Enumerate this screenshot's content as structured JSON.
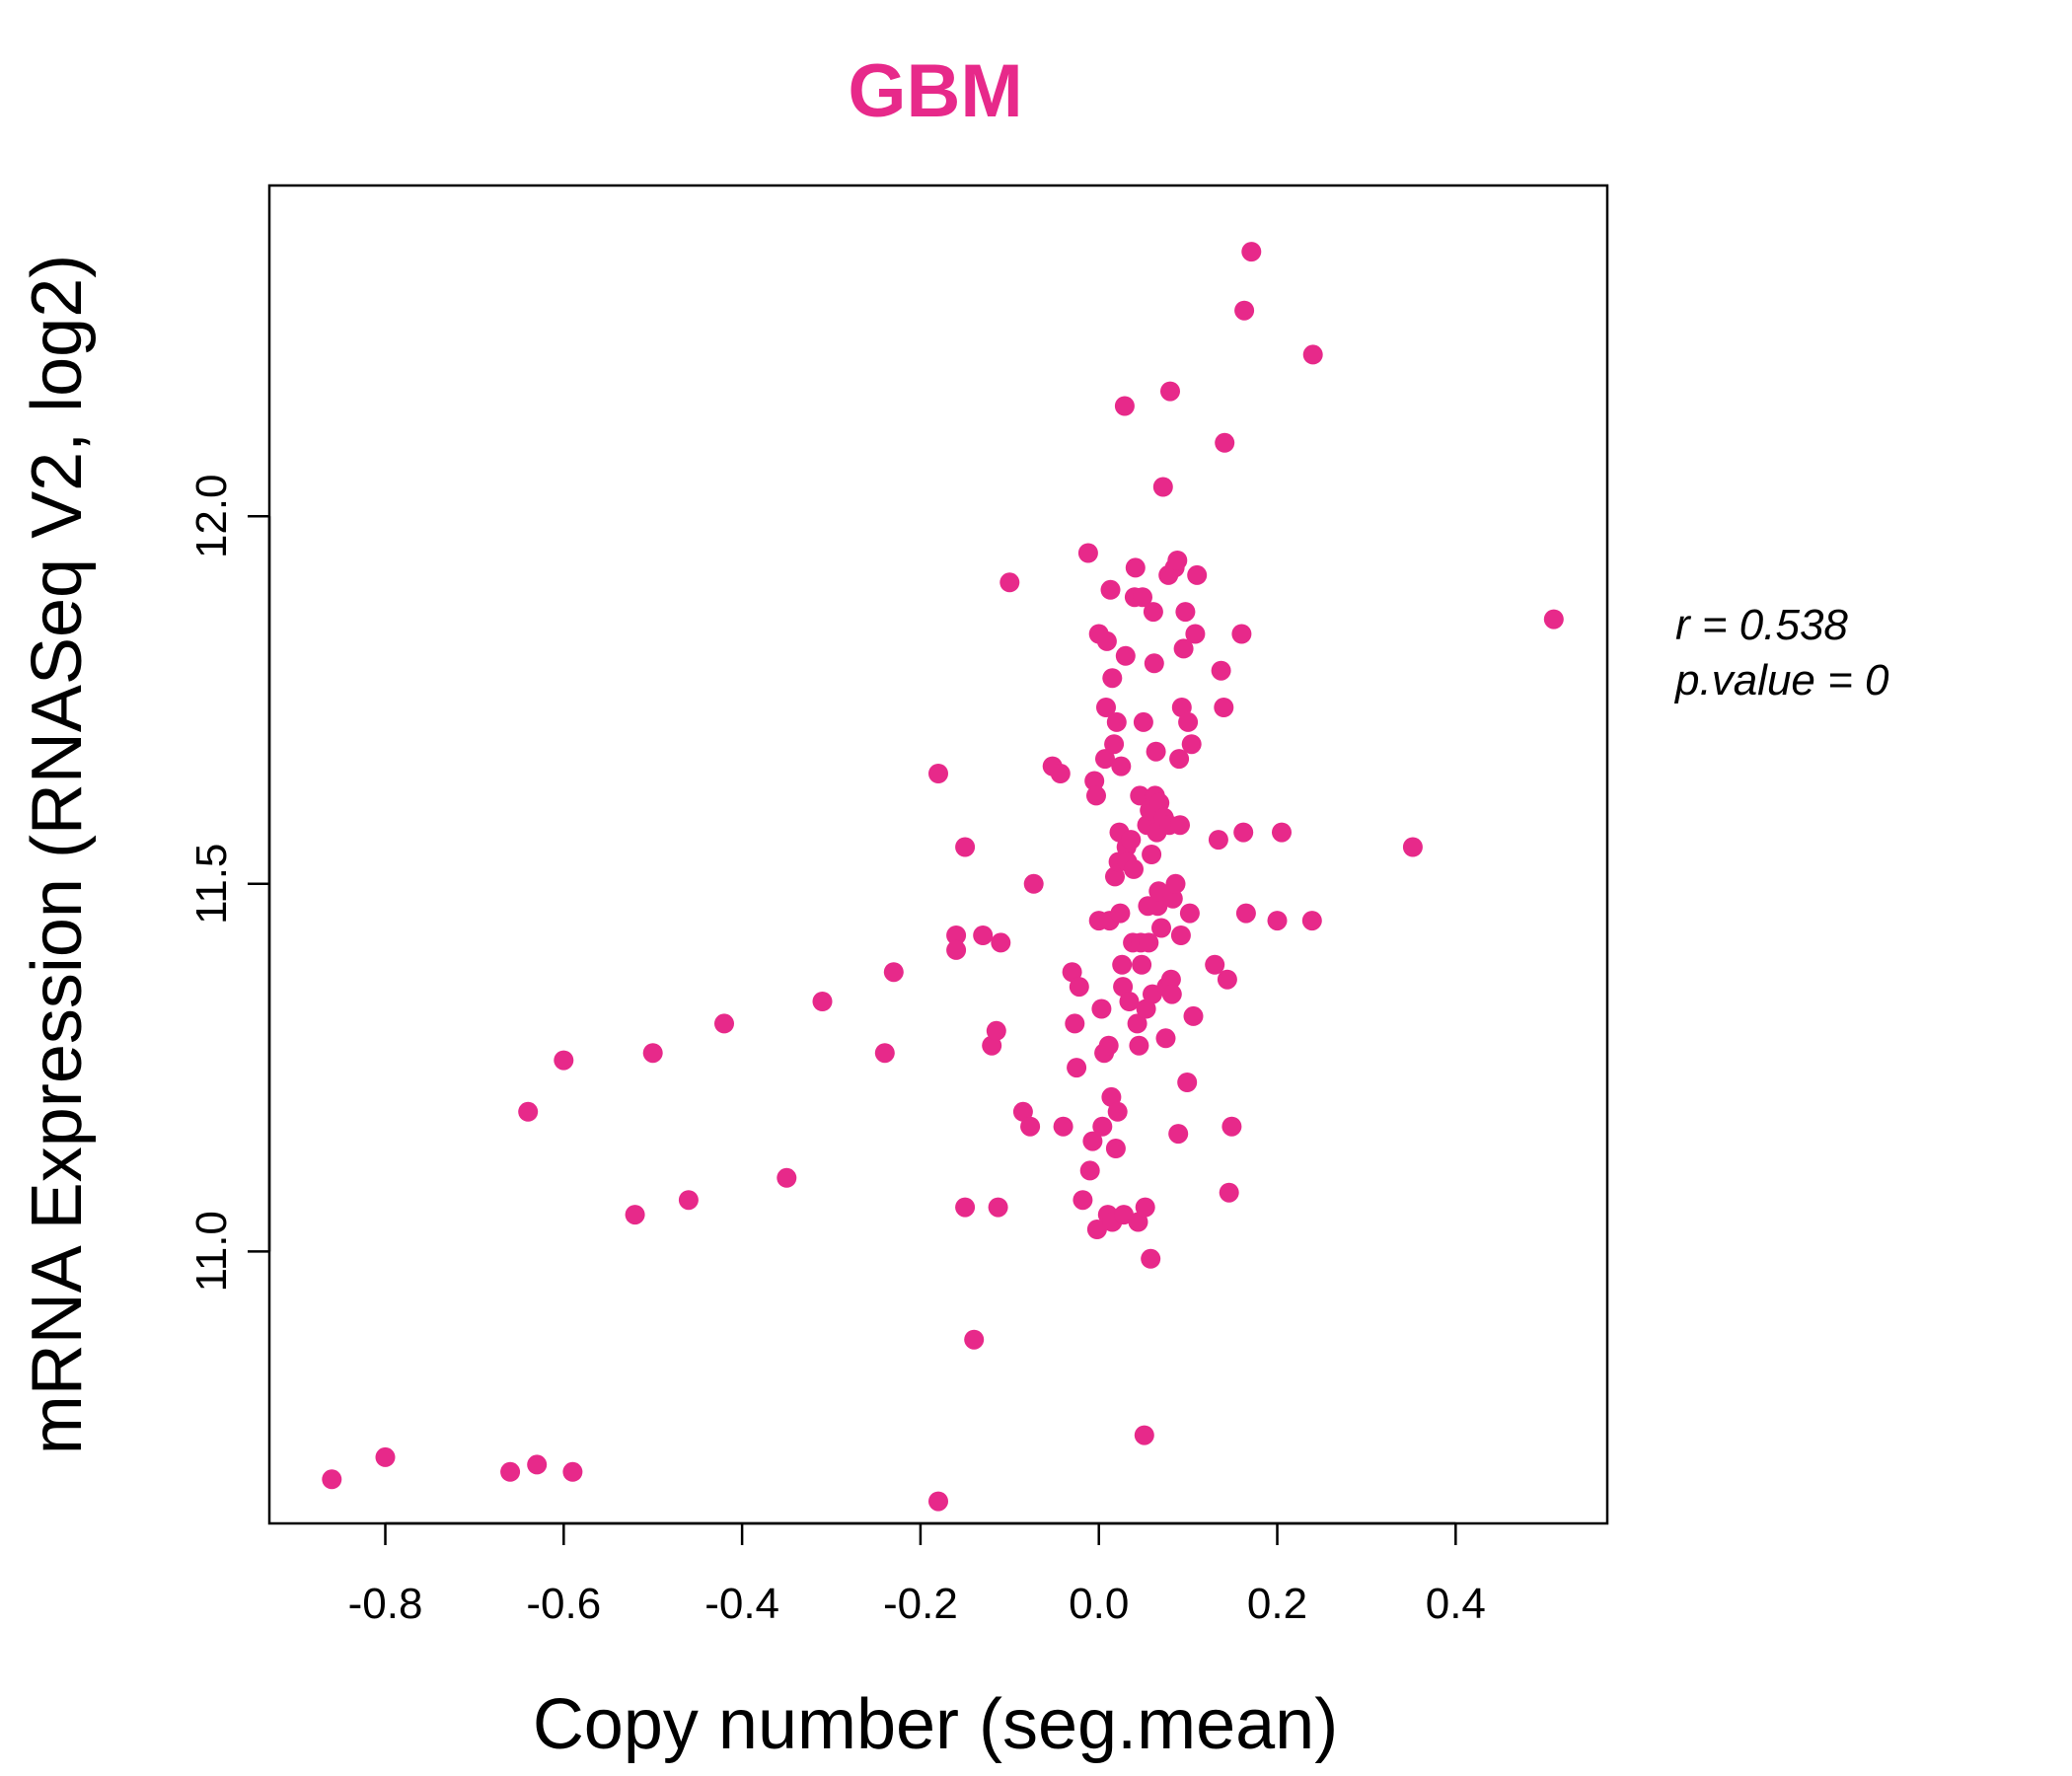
{
  "chart_data": {
    "type": "scatter",
    "title": "GBM",
    "xlabel": "Copy number (seg.mean)",
    "ylabel": "mRNA Expression (RNASeq V2, log2)",
    "xlim": [
      -0.93,
      0.57
    ],
    "ylim": [
      10.63,
      12.45
    ],
    "x_ticks": [
      "-0.8",
      "-0.6",
      "-0.4",
      "-0.2",
      "0.0",
      "0.2",
      "0.4"
    ],
    "x_tick_values": [
      -0.8,
      -0.6,
      -0.4,
      -0.2,
      0.0,
      0.2,
      0.4
    ],
    "y_ticks": [
      "11.0",
      "11.5",
      "12.0"
    ],
    "y_tick_values": [
      11.0,
      11.5,
      12.0
    ],
    "stats": {
      "r": "r = 0.538",
      "p": "p.value = 0"
    },
    "colors": {
      "points": "#E7298A",
      "title": "#E7298A",
      "axis": "#000000"
    },
    "points": [
      [
        -0.86,
        10.69
      ],
      [
        -0.8,
        10.72
      ],
      [
        -0.66,
        10.7
      ],
      [
        -0.63,
        10.71
      ],
      [
        -0.59,
        10.7
      ],
      [
        -0.64,
        11.19
      ],
      [
        -0.6,
        11.26
      ],
      [
        -0.52,
        11.05
      ],
      [
        -0.5,
        11.27
      ],
      [
        -0.46,
        11.07
      ],
      [
        -0.42,
        11.31
      ],
      [
        -0.35,
        11.1
      ],
      [
        -0.31,
        11.34
      ],
      [
        -0.24,
        11.27
      ],
      [
        -0.23,
        11.38
      ],
      [
        -0.18,
        11.65
      ],
      [
        -0.18,
        10.66
      ],
      [
        -0.16,
        11.43
      ],
      [
        -0.16,
        11.41
      ],
      [
        -0.15,
        11.55
      ],
      [
        -0.15,
        11.06
      ],
      [
        -0.14,
        10.88
      ],
      [
        -0.13,
        11.43
      ],
      [
        -0.12,
        11.28
      ],
      [
        -0.115,
        11.3
      ],
      [
        -0.113,
        11.06
      ],
      [
        -0.11,
        11.42
      ],
      [
        -0.1,
        11.91
      ],
      [
        -0.085,
        11.19
      ],
      [
        -0.077,
        11.17
      ],
      [
        -0.073,
        11.5
      ],
      [
        -0.052,
        11.66
      ],
      [
        -0.043,
        11.65
      ],
      [
        -0.04,
        11.17
      ],
      [
        -0.03,
        11.38
      ],
      [
        -0.027,
        11.31
      ],
      [
        -0.025,
        11.25
      ],
      [
        -0.022,
        11.36
      ],
      [
        -0.018,
        11.07
      ],
      [
        -0.012,
        11.95
      ],
      [
        -0.01,
        11.11
      ],
      [
        -0.007,
        11.15
      ],
      [
        -0.005,
        11.64
      ],
      [
        -0.003,
        11.62
      ],
      [
        -0.002,
        11.03
      ],
      [
        0.0,
        11.45
      ],
      [
        0.0,
        11.84
      ],
      [
        0.003,
        11.33
      ],
      [
        0.004,
        11.17
      ],
      [
        0.006,
        11.27
      ],
      [
        0.007,
        11.67
      ],
      [
        0.008,
        11.74
      ],
      [
        0.009,
        11.83
      ],
      [
        0.01,
        11.05
      ],
      [
        0.011,
        11.28
      ],
      [
        0.012,
        11.45
      ],
      [
        0.013,
        11.9
      ],
      [
        0.014,
        11.21
      ],
      [
        0.015,
        11.04
      ],
      [
        0.015,
        11.78
      ],
      [
        0.017,
        11.69
      ],
      [
        0.018,
        11.51
      ],
      [
        0.019,
        11.14
      ],
      [
        0.02,
        11.72
      ],
      [
        0.021,
        11.19
      ],
      [
        0.022,
        11.53
      ],
      [
        0.023,
        11.57
      ],
      [
        0.024,
        11.46
      ],
      [
        0.025,
        11.66
      ],
      [
        0.026,
        11.39
      ],
      [
        0.027,
        11.36
      ],
      [
        0.028,
        11.05
      ],
      [
        0.029,
        12.15
      ],
      [
        0.03,
        11.81
      ],
      [
        0.031,
        11.55
      ],
      [
        0.032,
        11.53
      ],
      [
        0.034,
        11.34
      ],
      [
        0.036,
        11.56
      ],
      [
        0.038,
        11.42
      ],
      [
        0.039,
        11.52
      ],
      [
        0.04,
        11.89
      ],
      [
        0.041,
        11.93
      ],
      [
        0.043,
        11.31
      ],
      [
        0.044,
        11.04
      ],
      [
        0.045,
        11.28
      ],
      [
        0.046,
        11.62
      ],
      [
        0.047,
        11.42
      ],
      [
        0.048,
        11.39
      ],
      [
        0.049,
        11.89
      ],
      [
        0.05,
        11.72
      ],
      [
        0.051,
        10.75
      ],
      [
        0.052,
        11.06
      ],
      [
        0.053,
        11.33
      ],
      [
        0.054,
        11.58
      ],
      [
        0.055,
        11.47
      ],
      [
        0.056,
        11.42
      ],
      [
        0.057,
        11.6
      ],
      [
        0.058,
        10.99
      ],
      [
        0.059,
        11.54
      ],
      [
        0.06,
        11.35
      ],
      [
        0.061,
        11.87
      ],
      [
        0.062,
        11.8
      ],
      [
        0.063,
        11.62
      ],
      [
        0.064,
        11.68
      ],
      [
        0.065,
        11.57
      ],
      [
        0.066,
        11.47
      ],
      [
        0.067,
        11.49
      ],
      [
        0.068,
        11.61
      ],
      [
        0.07,
        11.44
      ],
      [
        0.072,
        12.04
      ],
      [
        0.073,
        11.59
      ],
      [
        0.075,
        11.29
      ],
      [
        0.076,
        11.36
      ],
      [
        0.078,
        11.92
      ],
      [
        0.079,
        11.58
      ],
      [
        0.08,
        12.17
      ],
      [
        0.081,
        11.37
      ],
      [
        0.082,
        11.35
      ],
      [
        0.083,
        11.48
      ],
      [
        0.085,
        11.93
      ],
      [
        0.086,
        11.5
      ],
      [
        0.088,
        11.94
      ],
      [
        0.089,
        11.16
      ],
      [
        0.09,
        11.67
      ],
      [
        0.091,
        11.58
      ],
      [
        0.092,
        11.43
      ],
      [
        0.093,
        11.74
      ],
      [
        0.095,
        11.82
      ],
      [
        0.097,
        11.87
      ],
      [
        0.099,
        11.23
      ],
      [
        0.1,
        11.72
      ],
      [
        0.102,
        11.46
      ],
      [
        0.104,
        11.69
      ],
      [
        0.106,
        11.32
      ],
      [
        0.108,
        11.84
      ],
      [
        0.11,
        11.92
      ],
      [
        0.13,
        11.39
      ],
      [
        0.134,
        11.56
      ],
      [
        0.137,
        11.79
      ],
      [
        0.14,
        11.74
      ],
      [
        0.141,
        12.1
      ],
      [
        0.144,
        11.37
      ],
      [
        0.146,
        11.08
      ],
      [
        0.149,
        11.17
      ],
      [
        0.16,
        11.84
      ],
      [
        0.162,
        11.57
      ],
      [
        0.163,
        12.28
      ],
      [
        0.165,
        11.46
      ],
      [
        0.171,
        12.36
      ],
      [
        0.2,
        11.45
      ],
      [
        0.205,
        11.57
      ],
      [
        0.239,
        11.45
      ],
      [
        0.24,
        12.22
      ],
      [
        0.352,
        11.55
      ],
      [
        0.51,
        11.86
      ]
    ]
  }
}
